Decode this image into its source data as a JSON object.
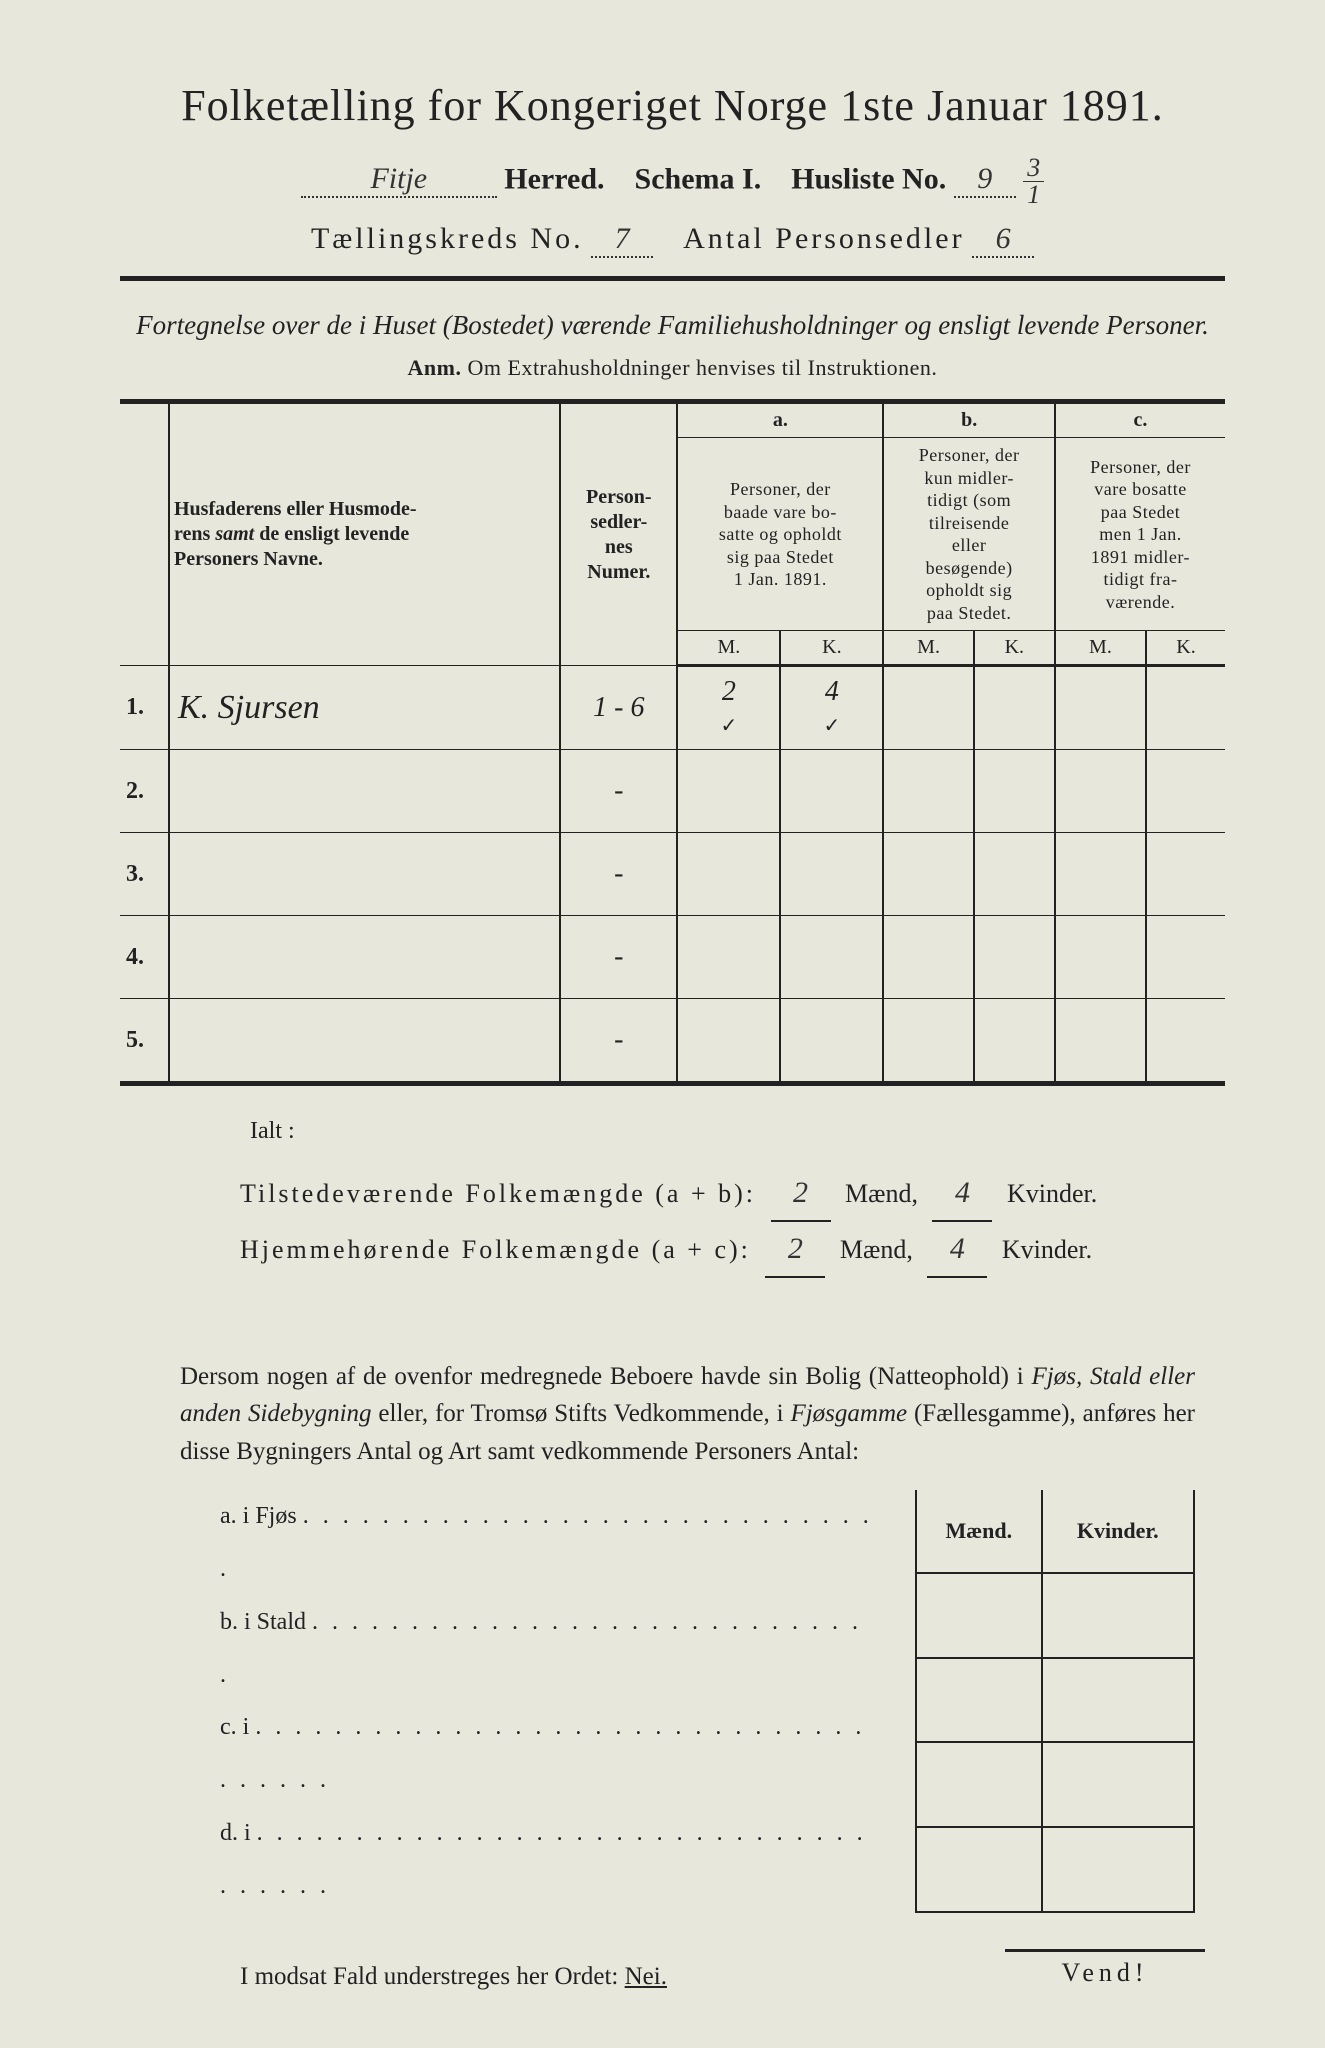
{
  "title": "Folketælling for Kongeriget Norge 1ste Januar 1891.",
  "header": {
    "herred_value": "Fitje",
    "herred_label": "Herred.",
    "schema_label": "Schema I.",
    "husliste_label": "Husliste No.",
    "husliste_value": "9",
    "husliste_frac_top": "3",
    "husliste_frac_bot": "1",
    "kreds_label": "Tællingskreds No.",
    "kreds_value": "7",
    "antal_label": "Antal Personsedler",
    "antal_value": "6"
  },
  "subtitle": "Fortegnelse over de i Huset (Bostedet) værende Familiehusholdninger og ensligt levende Personer.",
  "anm_label": "Anm.",
  "anm_text": "Om Extrahusholdninger henvises til Instruktionen.",
  "table": {
    "col_names": "Husfaderens eller Husmoderens samt de ensligt levende Personers Navne.",
    "col_numer": "Person-\nsedler-\nnes\nNumer.",
    "col_a_label": "a.",
    "col_a_text": "Personer, der baade vare bosatte og opholdt sig paa Stedet 1 Jan. 1891.",
    "col_b_label": "b.",
    "col_b_text": "Personer, der kun midlertidigt (som tilreisende eller besøgende) opholdt sig paa Stedet.",
    "col_c_label": "c.",
    "col_c_text": "Personer, der vare bosatte paa Stedet men 1 Jan. 1891 midlertidigt fraværende.",
    "M": "M.",
    "K": "K.",
    "rows": [
      {
        "num": "1.",
        "name": "K. Sjursen",
        "sedler": "1 - 6",
        "aM": "2",
        "aK": "4",
        "check_aM": "✓",
        "check_aK": "✓",
        "bM": "",
        "bK": "",
        "cM": "",
        "cK": ""
      },
      {
        "num": "2.",
        "name": "",
        "sedler": "-",
        "aM": "",
        "aK": "",
        "bM": "",
        "bK": "",
        "cM": "",
        "cK": ""
      },
      {
        "num": "3.",
        "name": "",
        "sedler": "-",
        "aM": "",
        "aK": "",
        "bM": "",
        "bK": "",
        "cM": "",
        "cK": ""
      },
      {
        "num": "4.",
        "name": "",
        "sedler": "-",
        "aM": "",
        "aK": "",
        "bM": "",
        "bK": "",
        "cM": "",
        "cK": ""
      },
      {
        "num": "5.",
        "name": "",
        "sedler": "-",
        "aM": "",
        "aK": "",
        "bM": "",
        "bK": "",
        "cM": "",
        "cK": ""
      }
    ]
  },
  "totals": {
    "ialt": "Ialt :",
    "line1_label": "Tilstedeværende Folkemængde (a + b):",
    "line2_label": "Hjemmehørende Folkemængde (a + c):",
    "maend": "Mænd,",
    "kvinder": "Kvinder.",
    "t_m": "2",
    "t_k": "4",
    "h_m": "2",
    "h_k": "4"
  },
  "para": "Dersom nogen af de ovenfor medregnede Beboere havde sin Bolig (Natteophold) i Fjøs, Stald eller anden Sidebygning eller, for Tromsø Stifts Vedkommende, i Fjøsgamme (Fællesgamme), anføres her disse Bygningers Antal og Art samt vedkommende Personers Antal:",
  "side": {
    "a": "a.  i      Fjøs",
    "b": "b.  i      Stald",
    "c": "c.  i",
    "d": "d.  i",
    "maend": "Mænd.",
    "kvinder": "Kvinder."
  },
  "nei_line_pre": "I modsat Fald understreges her Ordet: ",
  "nei": "Nei.",
  "vend": "Vend!"
}
